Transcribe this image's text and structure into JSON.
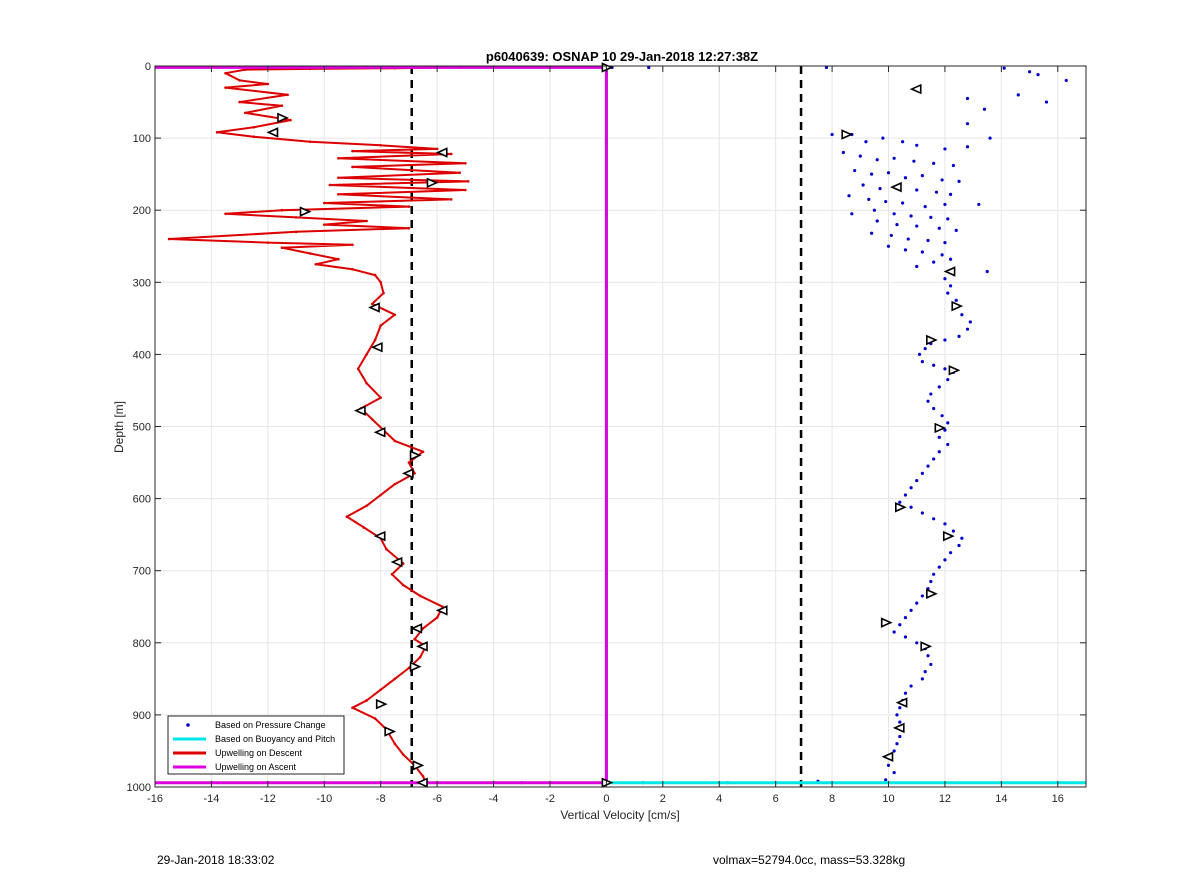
{
  "chart_data": {
    "type": "scatter",
    "title": "p6040639: OSNAP 10 29-Jan-2018 12:27:38Z",
    "xlabel": "Vertical Velocity [cm/s]",
    "ylabel": "Depth [m]",
    "xlim": [
      -16,
      17
    ],
    "ylim": [
      0,
      1000
    ],
    "y_reversed": true,
    "grid": true,
    "xticks": [
      -16,
      -14,
      -12,
      -10,
      -8,
      -6,
      -4,
      -2,
      0,
      2,
      4,
      6,
      8,
      10,
      12,
      14,
      16
    ],
    "yticks": [
      0,
      100,
      200,
      300,
      400,
      500,
      600,
      700,
      800,
      900,
      1000
    ],
    "reference_lines": [
      {
        "x": -6.9,
        "style": "dashed",
        "color": "#000000"
      },
      {
        "x": 6.9,
        "style": "dashed",
        "color": "#000000"
      }
    ],
    "legend_position": "bottom-left",
    "series": [
      {
        "name": "Based on Pressure Change",
        "style": "dots",
        "color": "#0000cc",
        "points": [
          [
            7.8,
            2
          ],
          [
            14.1,
            3
          ],
          [
            15.0,
            8
          ],
          [
            15.3,
            12
          ],
          [
            16.3,
            20
          ],
          [
            15.6,
            50
          ],
          [
            14.6,
            40
          ],
          [
            12.8,
            45
          ],
          [
            13.4,
            60
          ],
          [
            11.0,
            32
          ],
          [
            12.8,
            80
          ],
          [
            13.6,
            100
          ],
          [
            8.0,
            95
          ],
          [
            8.7,
            95
          ],
          [
            9.2,
            105
          ],
          [
            9.8,
            100
          ],
          [
            10.5,
            105
          ],
          [
            11.0,
            110
          ],
          [
            12.0,
            115
          ],
          [
            12.8,
            112
          ],
          [
            8.4,
            120
          ],
          [
            9.0,
            125
          ],
          [
            9.6,
            130
          ],
          [
            10.2,
            128
          ],
          [
            10.9,
            132
          ],
          [
            11.6,
            135
          ],
          [
            12.3,
            138
          ],
          [
            8.8,
            145
          ],
          [
            9.4,
            150
          ],
          [
            10.0,
            148
          ],
          [
            10.6,
            155
          ],
          [
            11.2,
            152
          ],
          [
            11.9,
            158
          ],
          [
            12.5,
            160
          ],
          [
            9.1,
            165
          ],
          [
            9.7,
            170
          ],
          [
            10.4,
            168
          ],
          [
            11.0,
            172
          ],
          [
            11.7,
            175
          ],
          [
            12.2,
            178
          ],
          [
            8.6,
            180
          ],
          [
            9.3,
            185
          ],
          [
            9.9,
            188
          ],
          [
            10.5,
            190
          ],
          [
            11.3,
            195
          ],
          [
            12.0,
            192
          ],
          [
            13.2,
            192
          ],
          [
            9.5,
            200
          ],
          [
            10.2,
            205
          ],
          [
            10.8,
            208
          ],
          [
            11.5,
            210
          ],
          [
            12.1,
            212
          ],
          [
            8.7,
            205
          ],
          [
            9.6,
            215
          ],
          [
            10.3,
            220
          ],
          [
            11.0,
            222
          ],
          [
            11.8,
            225
          ],
          [
            12.4,
            228
          ],
          [
            9.4,
            232
          ],
          [
            10.1,
            235
          ],
          [
            10.7,
            240
          ],
          [
            11.4,
            242
          ],
          [
            12.0,
            245
          ],
          [
            10.0,
            250
          ],
          [
            10.6,
            255
          ],
          [
            11.2,
            258
          ],
          [
            11.9,
            262
          ],
          [
            12.2,
            268
          ],
          [
            11.6,
            272
          ],
          [
            11.0,
            278
          ],
          [
            12.3,
            285
          ],
          [
            13.5,
            285
          ],
          [
            12.0,
            295
          ],
          [
            12.2,
            305
          ],
          [
            12.1,
            315
          ],
          [
            12.4,
            325
          ],
          [
            12.3,
            333
          ],
          [
            12.6,
            345
          ],
          [
            12.9,
            355
          ],
          [
            12.8,
            365
          ],
          [
            12.5,
            375
          ],
          [
            12.0,
            380
          ],
          [
            11.5,
            385
          ],
          [
            11.3,
            392
          ],
          [
            11.1,
            400
          ],
          [
            11.2,
            410
          ],
          [
            11.6,
            415
          ],
          [
            12.0,
            420
          ],
          [
            12.3,
            425
          ],
          [
            12.1,
            435
          ],
          [
            11.8,
            445
          ],
          [
            11.5,
            455
          ],
          [
            11.4,
            465
          ],
          [
            11.6,
            475
          ],
          [
            11.9,
            485
          ],
          [
            12.1,
            495
          ],
          [
            12.0,
            505
          ],
          [
            11.8,
            515
          ],
          [
            12.1,
            525
          ],
          [
            11.8,
            535
          ],
          [
            11.6,
            545
          ],
          [
            11.4,
            555
          ],
          [
            11.2,
            565
          ],
          [
            11.0,
            575
          ],
          [
            10.8,
            585
          ],
          [
            10.6,
            595
          ],
          [
            10.4,
            605
          ],
          [
            10.8,
            612
          ],
          [
            11.2,
            620
          ],
          [
            11.6,
            628
          ],
          [
            12.0,
            635
          ],
          [
            12.3,
            645
          ],
          [
            12.6,
            655
          ],
          [
            12.5,
            665
          ],
          [
            12.2,
            675
          ],
          [
            12.0,
            685
          ],
          [
            11.8,
            695
          ],
          [
            11.6,
            705
          ],
          [
            11.5,
            715
          ],
          [
            11.4,
            725
          ],
          [
            11.2,
            735
          ],
          [
            11.0,
            745
          ],
          [
            10.8,
            755
          ],
          [
            10.6,
            765
          ],
          [
            10.4,
            775
          ],
          [
            10.2,
            785
          ],
          [
            10.6,
            792
          ],
          [
            11.0,
            800
          ],
          [
            11.3,
            808
          ],
          [
            11.4,
            818
          ],
          [
            11.5,
            830
          ],
          [
            11.3,
            840
          ],
          [
            11.2,
            850
          ],
          [
            10.8,
            860
          ],
          [
            10.6,
            870
          ],
          [
            10.5,
            880
          ],
          [
            10.4,
            890
          ],
          [
            10.3,
            900
          ],
          [
            10.4,
            910
          ],
          [
            10.5,
            920
          ],
          [
            10.4,
            930
          ],
          [
            10.3,
            940
          ],
          [
            10.2,
            950
          ],
          [
            10.1,
            960
          ],
          [
            10.0,
            970
          ],
          [
            10.2,
            980
          ],
          [
            9.9,
            990
          ],
          [
            7.5,
            992
          ],
          [
            6.0,
            994
          ],
          [
            4.3,
            994
          ],
          [
            1.3,
            994
          ],
          [
            -3.0,
            994
          ],
          [
            0.2,
            2
          ],
          [
            1.5,
            2
          ],
          [
            -7.0,
            2
          ]
        ]
      },
      {
        "name": "Based on Buoyancy and Pitch",
        "style": "line",
        "color": "#00e5e5",
        "points": [
          [
            0,
            2
          ],
          [
            0,
            994
          ],
          [
            17,
            994
          ]
        ]
      },
      {
        "name": "Upwelling on Descent",
        "style": "line-dots",
        "color": "#dd0000",
        "points": [
          [
            -5.2,
            2
          ],
          [
            -7.5,
            3
          ],
          [
            -10.5,
            4
          ],
          [
            -12.8,
            5
          ],
          [
            -13.5,
            10
          ],
          [
            -13.0,
            20
          ],
          [
            -12.0,
            25
          ],
          [
            -13.5,
            30
          ],
          [
            -11.3,
            40
          ],
          [
            -13.0,
            50
          ],
          [
            -11.5,
            55
          ],
          [
            -12.8,
            65
          ],
          [
            -11.2,
            75
          ],
          [
            -12.5,
            85
          ],
          [
            -13.8,
            92
          ],
          [
            -12.5,
            98
          ],
          [
            -10.5,
            105
          ],
          [
            -8.0,
            110
          ],
          [
            -6.0,
            115
          ],
          [
            -9.0,
            118
          ],
          [
            -5.5,
            122
          ],
          [
            -9.5,
            128
          ],
          [
            -5.0,
            135
          ],
          [
            -9.0,
            140
          ],
          [
            -5.2,
            148
          ],
          [
            -9.5,
            155
          ],
          [
            -4.9,
            160
          ],
          [
            -9.8,
            165
          ],
          [
            -5.0,
            172
          ],
          [
            -9.5,
            178
          ],
          [
            -5.5,
            185
          ],
          [
            -10.0,
            190
          ],
          [
            -7.0,
            195
          ],
          [
            -11.5,
            200
          ],
          [
            -13.5,
            205
          ],
          [
            -11.0,
            210
          ],
          [
            -8.5,
            215
          ],
          [
            -10.0,
            220
          ],
          [
            -7.0,
            225
          ],
          [
            -11.0,
            230
          ],
          [
            -15.5,
            240
          ],
          [
            -12.0,
            245
          ],
          [
            -9.0,
            248
          ],
          [
            -11.5,
            252
          ],
          [
            -10.5,
            260
          ],
          [
            -9.5,
            268
          ],
          [
            -10.3,
            275
          ],
          [
            -9.0,
            282
          ],
          [
            -8.2,
            290
          ],
          [
            -8.0,
            300
          ],
          [
            -7.9,
            315
          ],
          [
            -8.3,
            330
          ],
          [
            -7.5,
            345
          ],
          [
            -8.0,
            360
          ],
          [
            -8.2,
            380
          ],
          [
            -8.5,
            400
          ],
          [
            -8.8,
            420
          ],
          [
            -8.5,
            440
          ],
          [
            -8.0,
            460
          ],
          [
            -8.7,
            475
          ],
          [
            -8.3,
            490
          ],
          [
            -7.9,
            505
          ],
          [
            -7.5,
            520
          ],
          [
            -6.5,
            535
          ],
          [
            -7.0,
            550
          ],
          [
            -6.8,
            565
          ],
          [
            -7.5,
            580
          ],
          [
            -8.0,
            595
          ],
          [
            -8.5,
            610
          ],
          [
            -9.2,
            625
          ],
          [
            -8.6,
            640
          ],
          [
            -8.0,
            655
          ],
          [
            -7.8,
            670
          ],
          [
            -7.2,
            690
          ],
          [
            -7.6,
            705
          ],
          [
            -7.2,
            720
          ],
          [
            -6.6,
            735
          ],
          [
            -5.8,
            750
          ],
          [
            -6.0,
            765
          ],
          [
            -6.5,
            780
          ],
          [
            -6.8,
            795
          ],
          [
            -6.4,
            805
          ],
          [
            -6.6,
            820
          ],
          [
            -7.0,
            835
          ],
          [
            -7.5,
            850
          ],
          [
            -8.0,
            865
          ],
          [
            -8.5,
            880
          ],
          [
            -9.0,
            890
          ],
          [
            -8.2,
            905
          ],
          [
            -7.8,
            920
          ],
          [
            -7.5,
            940
          ],
          [
            -7.2,
            955
          ],
          [
            -6.8,
            970
          ],
          [
            -6.5,
            985
          ],
          [
            -6.4,
            994
          ]
        ]
      },
      {
        "name": "Upwelling on Ascent",
        "style": "line",
        "color": "#dd00dd",
        "points": [
          [
            -16,
            994
          ],
          [
            0,
            994
          ],
          [
            0,
            2
          ],
          [
            -16,
            2
          ]
        ]
      }
    ],
    "markers": {
      "style": "triangle",
      "color": "#000000",
      "points": [
        [
          0,
          2
        ],
        [
          11.0,
          32
        ],
        [
          -11.5,
          72
        ],
        [
          -11.8,
          92
        ],
        [
          8.5,
          95
        ],
        [
          -5.8,
          120
        ],
        [
          -6.2,
          162
        ],
        [
          10.3,
          168
        ],
        [
          -10.7,
          202
        ],
        [
          12.2,
          285
        ],
        [
          12.4,
          333
        ],
        [
          -8.2,
          335
        ],
        [
          11.5,
          380
        ],
        [
          -8.1,
          390
        ],
        [
          12.3,
          422
        ],
        [
          -8.7,
          478
        ],
        [
          11.8,
          502
        ],
        [
          -8.0,
          508
        ],
        [
          -6.8,
          540
        ],
        [
          -7.0,
          565
        ],
        [
          10.4,
          612
        ],
        [
          -8.0,
          652
        ],
        [
          12.1,
          652
        ],
        [
          -7.4,
          688
        ],
        [
          11.5,
          732
        ],
        [
          -5.8,
          755
        ],
        [
          9.9,
          772
        ],
        [
          -6.7,
          780
        ],
        [
          11.3,
          805
        ],
        [
          -6.5,
          805
        ],
        [
          -6.8,
          833
        ],
        [
          10.5,
          883
        ],
        [
          -8.0,
          885
        ],
        [
          10.4,
          918
        ],
        [
          -7.7,
          923
        ],
        [
          10.0,
          958
        ],
        [
          -6.7,
          970
        ],
        [
          -6.5,
          994
        ],
        [
          0,
          994
        ]
      ]
    }
  },
  "footer": {
    "timestamp": "29-Jan-2018 18:33:02",
    "info": "volmax=52794.0cc, mass=53.328kg"
  }
}
